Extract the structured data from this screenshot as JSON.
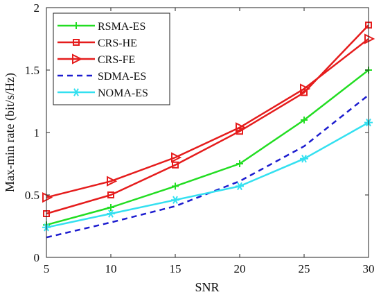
{
  "chart_data": {
    "type": "line",
    "xlabel": "SNR",
    "ylabel": "Max-min rate (bit/s/Hz)",
    "xlim": [
      5,
      30
    ],
    "ylim": [
      0,
      2
    ],
    "x_ticks": [
      5,
      10,
      15,
      20,
      25,
      30
    ],
    "y_ticks": [
      0,
      0.5,
      1,
      1.5,
      2
    ],
    "x_tick_labels": [
      "5",
      "10",
      "15",
      "20",
      "25",
      "30"
    ],
    "y_tick_labels": [
      "0",
      "0.5",
      "1",
      "1.5",
      "2"
    ],
    "grid": false,
    "legend_position": "top-left",
    "x": [
      5,
      10,
      15,
      20,
      25,
      30
    ],
    "series": [
      {
        "name": "RSMA-ES",
        "values": [
          0.26,
          0.4,
          0.57,
          0.75,
          1.1,
          1.5
        ],
        "color": "#22dd22",
        "marker": "plus",
        "dash": "solid"
      },
      {
        "name": "CRS-HE",
        "values": [
          0.35,
          0.5,
          0.74,
          1.01,
          1.32,
          1.86
        ],
        "color": "#e51c1c",
        "marker": "square",
        "dash": "solid"
      },
      {
        "name": "CRS-FE",
        "values": [
          0.48,
          0.61,
          0.8,
          1.04,
          1.35,
          1.75
        ],
        "color": "#e51c1c",
        "marker": "triangle-right",
        "dash": "solid"
      },
      {
        "name": "SDMA-ES",
        "values": [
          0.16,
          0.28,
          0.41,
          0.61,
          0.89,
          1.3
        ],
        "color": "#1c1ccf",
        "marker": "none",
        "dash": "dashed"
      },
      {
        "name": "NOMA-ES",
        "values": [
          0.24,
          0.35,
          0.46,
          0.57,
          0.79,
          1.08
        ],
        "color": "#33e0f0",
        "marker": "hexagram",
        "dash": "solid"
      }
    ]
  }
}
